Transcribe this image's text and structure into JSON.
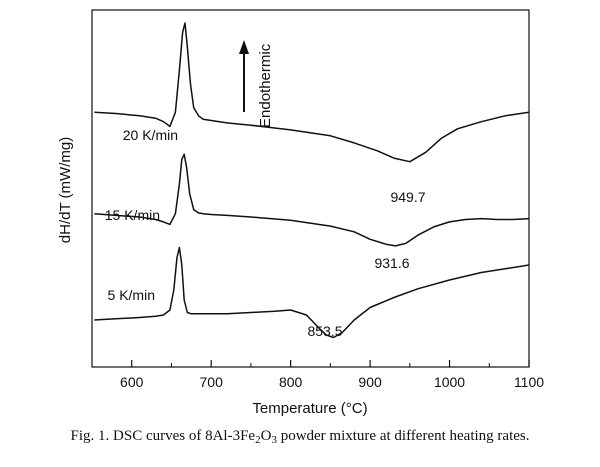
{
  "chart_data": {
    "type": "line",
    "title": "",
    "xlabel": "Temperature (°C)",
    "ylabel": "dH/dT (mW/mg)",
    "xlim": [
      550,
      1100
    ],
    "x_ticks": [
      600,
      700,
      800,
      900,
      1000,
      1100
    ],
    "y_ticks": [],
    "grid": false,
    "legend": "none",
    "annotation": "Endothermic",
    "annotation_arrow": "up",
    "series": [
      {
        "name": "20 K/min",
        "color": "#111111",
        "peak_label": "949.7",
        "x": [
          553,
          580,
          610,
          630,
          640,
          648,
          655,
          660,
          664,
          667,
          670,
          674,
          678,
          684,
          690,
          700,
          720,
          750,
          800,
          850,
          880,
          910,
          930,
          950,
          970,
          990,
          1010,
          1040,
          1070,
          1100
        ],
        "y": [
          0.62,
          0.615,
          0.605,
          0.595,
          0.58,
          0.56,
          0.62,
          0.8,
          0.96,
          1.0,
          0.9,
          0.74,
          0.64,
          0.605,
          0.59,
          0.585,
          0.575,
          0.565,
          0.545,
          0.52,
          0.49,
          0.455,
          0.425,
          0.41,
          0.45,
          0.51,
          0.55,
          0.58,
          0.605,
          0.62
        ]
      },
      {
        "name": "15 K/min",
        "color": "#111111",
        "peak_label": "931.6",
        "x": [
          553,
          580,
          610,
          630,
          640,
          648,
          655,
          660,
          663,
          666,
          669,
          673,
          678,
          684,
          690,
          700,
          720,
          750,
          800,
          850,
          880,
          900,
          920,
          932,
          945,
          960,
          980,
          1000,
          1020,
          1040,
          1060,
          1080,
          1100
        ],
        "y": [
          0.42,
          0.41,
          0.4,
          0.385,
          0.37,
          0.355,
          0.42,
          0.6,
          0.75,
          0.78,
          0.7,
          0.54,
          0.445,
          0.425,
          0.42,
          0.415,
          0.41,
          0.4,
          0.38,
          0.345,
          0.31,
          0.265,
          0.235,
          0.225,
          0.24,
          0.29,
          0.34,
          0.37,
          0.385,
          0.39,
          0.385,
          0.385,
          0.39
        ]
      },
      {
        "name": "5 K/min",
        "color": "#111111",
        "peak_label": "853.5",
        "x": [
          553,
          580,
          610,
          630,
          640,
          648,
          653,
          657,
          660,
          663,
          666,
          670,
          675,
          680,
          690,
          700,
          720,
          750,
          780,
          800,
          820,
          835,
          845,
          854,
          865,
          880,
          900,
          930,
          960,
          1000,
          1040,
          1070,
          1100
        ],
        "y": [
          0.08,
          0.085,
          0.09,
          0.095,
          0.1,
          0.12,
          0.2,
          0.33,
          0.37,
          0.3,
          0.16,
          0.11,
          0.105,
          0.105,
          0.105,
          0.105,
          0.105,
          0.11,
          0.115,
          0.12,
          0.1,
          0.05,
          0.02,
          0.01,
          0.03,
          0.08,
          0.13,
          0.17,
          0.205,
          0.24,
          0.27,
          0.285,
          0.3
        ]
      }
    ]
  },
  "caption": {
    "prefix": "Fig. 1. DSC curves of 8Al-3Fe",
    "sub1": "2",
    "mid": "O",
    "sub2": "3",
    "suffix": " powder mixture at different heating rates."
  }
}
